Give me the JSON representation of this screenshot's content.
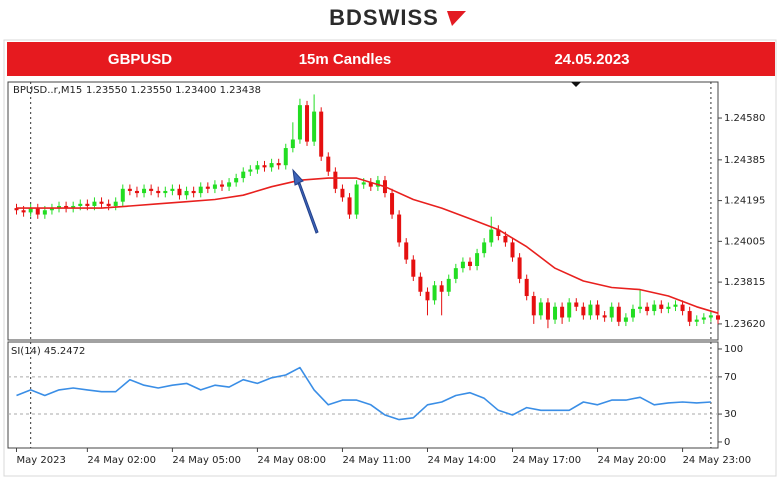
{
  "logo": "BDSWISS",
  "banner": {
    "symbol": "GBPUSD",
    "timeframe": "15m Candles",
    "date": "24.05.2023"
  },
  "chart_data": [
    {
      "type": "candlestick",
      "title": "BPUSD..r,M15",
      "subtitle": "1.23550 1.23550 1.23400 1.23438",
      "up_color": "#22dd22",
      "down_color": "#e51010",
      "x": [
        -0.5,
        -0.25,
        0,
        0.25,
        0.5,
        0.75,
        1,
        1.25,
        1.5,
        1.75,
        2,
        2.25,
        2.5,
        2.75,
        3,
        3.25,
        3.5,
        3.75,
        4,
        4.25,
        4.5,
        4.75,
        5,
        5.25,
        5.5,
        5.75,
        6,
        6.25,
        6.5,
        6.75,
        7,
        7.25,
        7.5,
        7.75,
        8,
        8.25,
        8.5,
        8.75,
        9,
        9.25,
        9.5,
        9.75,
        10,
        10.25,
        10.5,
        10.75,
        11,
        11.25,
        11.5,
        11.75,
        12,
        12.25,
        12.5,
        12.75,
        13,
        13.25,
        13.5,
        13.75,
        14,
        14.25,
        14.5,
        14.75,
        15,
        15.25,
        15.5,
        15.75,
        16,
        16.25,
        16.5,
        16.75,
        17,
        17.25,
        17.5,
        17.75,
        18,
        18.25,
        18.5,
        18.75,
        19,
        19.25,
        19.5,
        19.75,
        20,
        20.25,
        20.5,
        20.75,
        21,
        21.25,
        21.5,
        21.75,
        22,
        22.25,
        22.5,
        22.75,
        23,
        23.25,
        23.5,
        23.75,
        24,
        24.25
      ],
      "open": [
        1.2416,
        1.2415,
        1.2414,
        1.2416,
        1.2413,
        1.2415,
        1.2416,
        1.2417,
        1.2416,
        1.2417,
        1.2418,
        1.2417,
        1.2419,
        1.2418,
        1.2417,
        1.2419,
        1.2425,
        1.2424,
        1.2423,
        1.2425,
        1.2424,
        1.2423,
        1.2424,
        1.2425,
        1.2422,
        1.2424,
        1.2423,
        1.2426,
        1.2425,
        1.2427,
        1.2426,
        1.2428,
        1.243,
        1.2433,
        1.2434,
        1.2436,
        1.2435,
        1.2437,
        1.2436,
        1.2444,
        1.2448,
        1.2464,
        1.2447,
        1.2461,
        1.244,
        1.2433,
        1.2425,
        1.2421,
        1.2413,
        1.2427,
        1.2428,
        1.2426,
        1.2429,
        1.2423,
        1.2413,
        1.24,
        1.2392,
        1.2384,
        1.2377,
        1.2373,
        1.238,
        1.2377,
        1.2383,
        1.2388,
        1.2391,
        1.2389,
        1.2395,
        1.24,
        1.2406,
        1.2403,
        1.24,
        1.2393,
        1.2383,
        1.2375,
        1.2366,
        1.2372,
        1.2364,
        1.237,
        1.2365,
        1.2372,
        1.237,
        1.2366,
        1.2371,
        1.2366,
        1.2365,
        1.237,
        1.2363,
        1.2365,
        1.2369,
        1.237,
        1.2368,
        1.2371,
        1.2369,
        1.237,
        1.2371,
        1.2368,
        1.2363,
        1.2364,
        1.2365,
        1.2366
      ],
      "high": [
        1.2418,
        1.2417,
        1.2418,
        1.2418,
        1.2417,
        1.2418,
        1.2419,
        1.2419,
        1.2419,
        1.242,
        1.242,
        1.2421,
        1.2421,
        1.242,
        1.2421,
        1.2427,
        1.2427,
        1.2426,
        1.2427,
        1.2427,
        1.2426,
        1.2426,
        1.2427,
        1.2427,
        1.2426,
        1.2426,
        1.2428,
        1.2428,
        1.2429,
        1.2429,
        1.243,
        1.2432,
        1.2435,
        1.2436,
        1.2438,
        1.2438,
        1.2439,
        1.2439,
        1.2446,
        1.2456,
        1.2467,
        1.2466,
        1.2469,
        1.2463,
        1.2442,
        1.2435,
        1.2427,
        1.2423,
        1.2429,
        1.243,
        1.243,
        1.2431,
        1.2431,
        1.2425,
        1.2415,
        1.2402,
        1.2394,
        1.2386,
        1.2379,
        1.2382,
        1.2382,
        1.2385,
        1.239,
        1.2393,
        1.2393,
        1.2397,
        1.2402,
        1.2412,
        1.2408,
        1.2405,
        1.2402,
        1.2395,
        1.2385,
        1.2377,
        1.2374,
        1.2374,
        1.2372,
        1.2372,
        1.2374,
        1.2374,
        1.2372,
        1.2373,
        1.2373,
        1.2368,
        1.2372,
        1.2372,
        1.2367,
        1.2371,
        1.2378,
        1.2372,
        1.2373,
        1.2373,
        1.2372,
        1.2373,
        1.2373,
        1.237,
        1.2366,
        1.2367,
        1.2368,
        1.2368
      ],
      "low": [
        1.2413,
        1.2412,
        1.2412,
        1.2411,
        1.2411,
        1.2413,
        1.2414,
        1.2414,
        1.2414,
        1.2415,
        1.2415,
        1.2415,
        1.2416,
        1.2415,
        1.2415,
        1.2417,
        1.2422,
        1.2421,
        1.2421,
        1.2422,
        1.2421,
        1.2421,
        1.2422,
        1.242,
        1.242,
        1.2421,
        1.2421,
        1.2423,
        1.2423,
        1.2424,
        1.2424,
        1.2426,
        1.2428,
        1.2431,
        1.2432,
        1.2433,
        1.2433,
        1.2434,
        1.2434,
        1.2442,
        1.2446,
        1.2445,
        1.2445,
        1.2438,
        1.2431,
        1.2423,
        1.2419,
        1.2411,
        1.2411,
        1.2425,
        1.2424,
        1.2424,
        1.2421,
        1.2411,
        1.2398,
        1.239,
        1.2382,
        1.2375,
        1.2366,
        1.2371,
        1.2366,
        1.2375,
        1.2381,
        1.2386,
        1.2387,
        1.2387,
        1.2393,
        1.2398,
        1.2401,
        1.2398,
        1.2391,
        1.2381,
        1.2373,
        1.2362,
        1.2364,
        1.236,
        1.2362,
        1.2362,
        1.2363,
        1.2368,
        1.2364,
        1.2364,
        1.2364,
        1.2363,
        1.2363,
        1.2361,
        1.2361,
        1.2363,
        1.2367,
        1.2366,
        1.2366,
        1.2367,
        1.2367,
        1.2368,
        1.2366,
        1.2361,
        1.2361,
        1.2362,
        1.2363,
        1.2362
      ],
      "close": [
        1.2415,
        1.2414,
        1.2416,
        1.2413,
        1.2415,
        1.2416,
        1.2417,
        1.2416,
        1.2417,
        1.2418,
        1.2417,
        1.2419,
        1.2418,
        1.2417,
        1.2419,
        1.2425,
        1.2424,
        1.2423,
        1.2425,
        1.2424,
        1.2423,
        1.2424,
        1.2425,
        1.2422,
        1.2424,
        1.2423,
        1.2426,
        1.2425,
        1.2427,
        1.2426,
        1.2428,
        1.243,
        1.2433,
        1.2434,
        1.2436,
        1.2435,
        1.2437,
        1.2436,
        1.2444,
        1.2448,
        1.2464,
        1.2447,
        1.2461,
        1.244,
        1.2433,
        1.2425,
        1.2421,
        1.2413,
        1.2427,
        1.2428,
        1.2426,
        1.2429,
        1.2423,
        1.2413,
        1.24,
        1.2392,
        1.2384,
        1.2377,
        1.2373,
        1.238,
        1.2377,
        1.2383,
        1.2388,
        1.2391,
        1.2389,
        1.2395,
        1.24,
        1.2406,
        1.2403,
        1.24,
        1.2393,
        1.2383,
        1.2375,
        1.2366,
        1.2372,
        1.2364,
        1.237,
        1.2365,
        1.2372,
        1.237,
        1.2366,
        1.2371,
        1.2366,
        1.2365,
        1.237,
        1.2363,
        1.2365,
        1.2369,
        1.237,
        1.2368,
        1.2371,
        1.2369,
        1.237,
        1.2371,
        1.2368,
        1.2363,
        1.2364,
        1.2365,
        1.2366,
        1.2364
      ],
      "overlay": {
        "color": "#e8201e",
        "x": [
          -0.5,
          0.5,
          1.5,
          2.5,
          3.5,
          4.5,
          5.5,
          6.5,
          7.5,
          8.5,
          9.5,
          10.5,
          11.5,
          12.5,
          13.5,
          14.5,
          15.5,
          16.5,
          17.5,
          18.5,
          19.5,
          20.5,
          21.5,
          22.5,
          23.5,
          24.25
        ],
        "values": [
          1.2416,
          1.2416,
          1.2416,
          1.2416,
          1.2417,
          1.2418,
          1.2419,
          1.242,
          1.2422,
          1.2426,
          1.2429,
          1.243,
          1.243,
          1.2426,
          1.242,
          1.2416,
          1.2411,
          1.2406,
          1.2398,
          1.2388,
          1.2382,
          1.2379,
          1.2378,
          1.2375,
          1.237,
          1.2367
        ]
      },
      "xlim": [
        -0.8,
        24.25
      ],
      "ylim": [
        1.23545,
        1.24748
      ],
      "yticks": [
        {
          "value": 1.2458,
          "label": "1.24580"
        },
        1.24385,
        1.24195,
        1.24005,
        1.23815,
        {
          "value": 1.2362,
          "label": "1.23620"
        }
      ],
      "period_separators": [
        0,
        24
      ]
    },
    {
      "type": "line",
      "title": "SI(14) 45.2472",
      "color": "#3a8ee6",
      "x": [
        -0.5,
        0,
        0.5,
        1,
        1.5,
        2,
        2.5,
        3,
        3.5,
        4,
        4.5,
        5,
        5.5,
        6,
        6.5,
        7,
        7.5,
        8,
        8.5,
        9,
        9.5,
        10,
        10.5,
        11,
        11.5,
        12,
        12.5,
        13,
        13.5,
        14,
        14.5,
        15,
        15.5,
        16,
        16.5,
        17,
        17.5,
        18,
        18.5,
        19,
        19.5,
        20,
        20.5,
        21,
        21.5,
        22,
        22.5,
        23,
        23.5,
        24
      ],
      "values": [
        50,
        56,
        50,
        56,
        58,
        56,
        54,
        54,
        67,
        61,
        58,
        61,
        63,
        56,
        61,
        59,
        67,
        63,
        69,
        72,
        80,
        56,
        40,
        45,
        45,
        40,
        29,
        24,
        26,
        40,
        43,
        50,
        53,
        47,
        34,
        29,
        37,
        34,
        34,
        34,
        43,
        40,
        45,
        45,
        48,
        40,
        42,
        43,
        42,
        43
      ],
      "xlim": [
        -0.8,
        24.25
      ],
      "xticks": [
        {
          "value": -0.5,
          "label": "May 2023"
        },
        {
          "value": 2,
          "label": "24 May 02:00"
        },
        {
          "value": 5,
          "label": "24 May 05:00"
        },
        {
          "value": 8,
          "label": "24 May 08:00"
        },
        {
          "value": 11,
          "label": "24 May 11:00"
        },
        {
          "value": 14,
          "label": "24 May 14:00"
        },
        {
          "value": 17,
          "label": "24 May 17:00"
        },
        {
          "value": 20,
          "label": "24 May 20:00"
        },
        {
          "value": 23,
          "label": "24 May 23:00"
        }
      ],
      "ylim": [
        -6.5,
        107.5
      ],
      "yticks": [
        0,
        30,
        70,
        100
      ],
      "levels": [
        30,
        70
      ],
      "period_separators": [
        0,
        24
      ]
    }
  ]
}
